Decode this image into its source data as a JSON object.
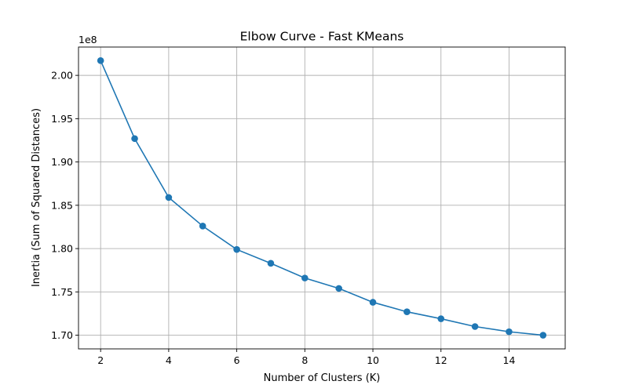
{
  "chart_data": {
    "type": "line",
    "title": "Elbow Curve - Fast KMeans",
    "xlabel": "Number of Clusters (K)",
    "ylabel": "Inertia (Sum of Squared Distances)",
    "y_offset_label": "1e8",
    "x": [
      2,
      3,
      4,
      5,
      6,
      7,
      8,
      9,
      10,
      11,
      12,
      13,
      14,
      15
    ],
    "series": [
      {
        "values": [
          2.017,
          1.927,
          1.859,
          1.826,
          1.799,
          1.783,
          1.766,
          1.754,
          1.738,
          1.727,
          1.719,
          1.71,
          1.704,
          1.7
        ],
        "color": "#1f77b4",
        "marker": "circle"
      }
    ],
    "xlim": [
      1.35,
      15.65
    ],
    "ylim": [
      1.6842,
      2.0327
    ],
    "x_ticks": [
      2,
      4,
      6,
      8,
      10,
      12,
      14
    ],
    "y_ticks": [
      1.7,
      1.75,
      1.8,
      1.85,
      1.9,
      1.95,
      2.0
    ],
    "y_tick_labels": [
      "1.70",
      "1.75",
      "1.80",
      "1.85",
      "1.90",
      "1.95",
      "2.00"
    ],
    "grid": true
  }
}
